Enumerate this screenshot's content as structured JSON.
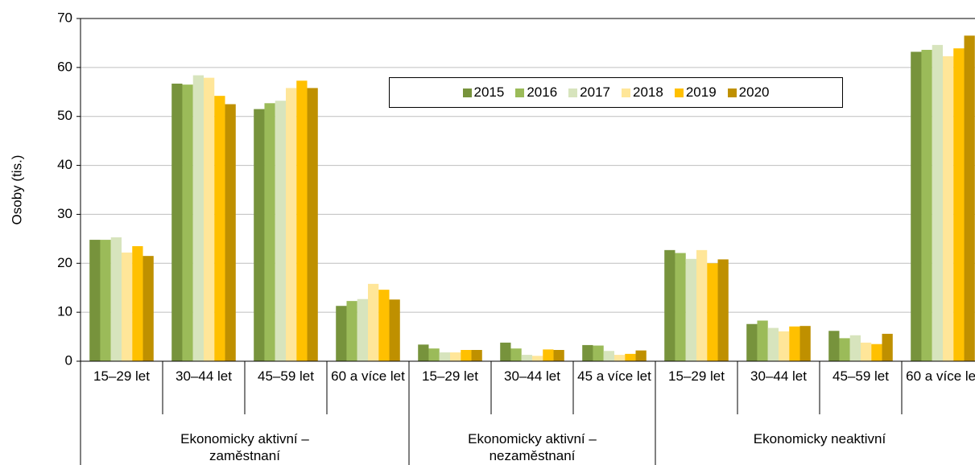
{
  "chart_data": {
    "type": "bar",
    "y_label": "Osoby (tis.)",
    "groups": [
      {
        "name": "Ekonomicky aktivní – zaměstnaní",
        "categories": [
          "15–29 let",
          "30–44 let",
          "45–59 let",
          "60 a více let"
        ]
      },
      {
        "name": "Ekonomicky aktivní – nezaměstnaní",
        "categories": [
          "15–29 let",
          "30–44 let",
          "45 a více let"
        ]
      },
      {
        "name": "Ekonomicky neaktivní",
        "categories": [
          "15–29 let",
          "30–44 let",
          "45–59 let",
          "60 a více let"
        ]
      }
    ],
    "series": [
      {
        "name": "2015",
        "color": "#77933c",
        "values": [
          24.8,
          56.7,
          51.5,
          11.3,
          3.4,
          3.8,
          3.3,
          22.7,
          7.6,
          6.2,
          63.2
        ]
      },
      {
        "name": "2016",
        "color": "#9bbb59",
        "values": [
          24.8,
          56.5,
          52.7,
          12.3,
          2.6,
          2.6,
          3.2,
          22.1,
          8.3,
          4.7,
          63.6
        ]
      },
      {
        "name": "2017",
        "color": "#d7e4bd",
        "values": [
          25.3,
          58.4,
          53.2,
          12.7,
          1.8,
          1.3,
          2.1,
          20.9,
          6.8,
          5.3,
          64.6
        ]
      },
      {
        "name": "2018",
        "color": "#ffe699",
        "values": [
          22.2,
          57.9,
          55.8,
          15.8,
          1.8,
          1.1,
          1.3,
          22.7,
          6.1,
          3.8,
          62.3
        ]
      },
      {
        "name": "2019",
        "color": "#ffc000",
        "values": [
          23.5,
          54.2,
          57.3,
          14.6,
          2.3,
          2.4,
          1.5,
          20.0,
          7.1,
          3.5,
          63.9
        ]
      },
      {
        "name": "2020",
        "color": "#bf9000",
        "values": [
          21.5,
          52.5,
          55.8,
          12.6,
          2.3,
          2.3,
          2.2,
          20.8,
          7.2,
          5.6,
          66.5
        ]
      }
    ],
    "ylim": [
      0,
      70
    ],
    "yticks": [
      0,
      10,
      20,
      30,
      40,
      50,
      60,
      70
    ],
    "grid": true
  }
}
